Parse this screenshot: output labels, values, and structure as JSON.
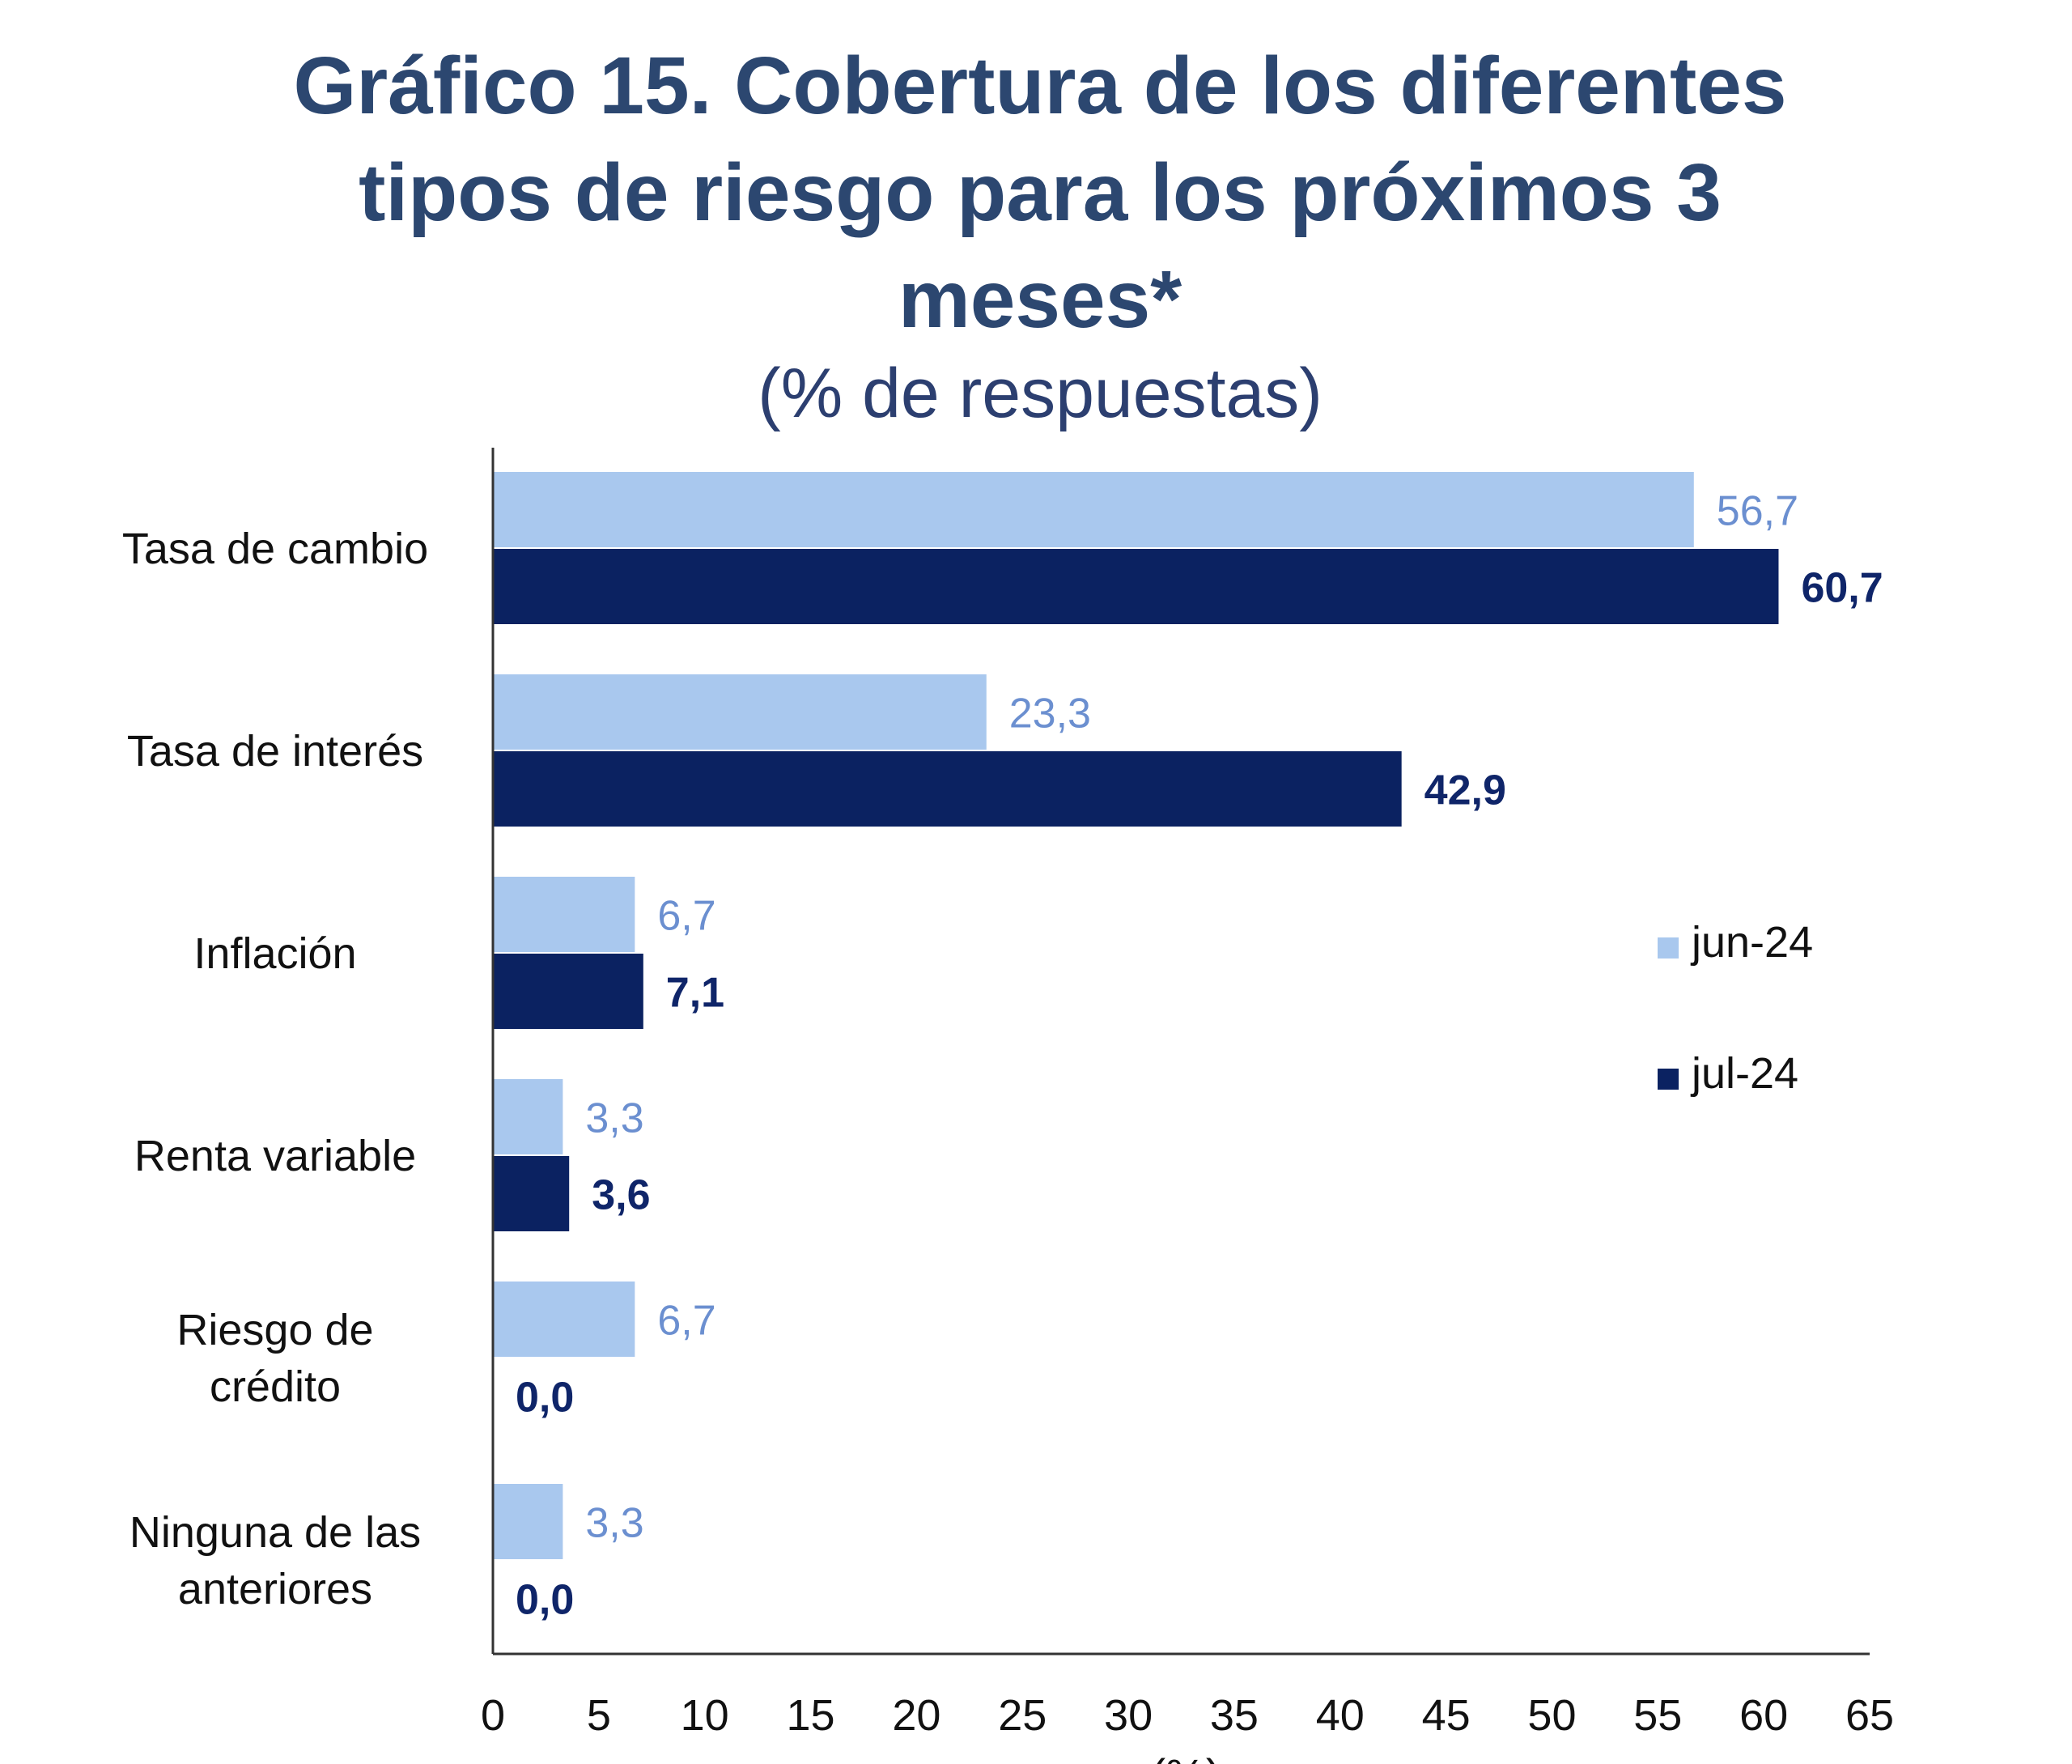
{
  "chart_data": {
    "type": "bar",
    "orientation": "horizontal",
    "title": "Gráfico 15. Cobertura de los diferentes tipos de riesgo para los próximos 3 meses*",
    "title_lines": [
      "Gráfico 15. Cobertura de los diferentes",
      "tipos de riesgo para los próximos 3",
      "meses*"
    ],
    "subtitle": "(% de respuestas)",
    "xlabel": "(%)",
    "categories": [
      [
        "Tasa de cambio"
      ],
      [
        "Tasa de interés"
      ],
      [
        "Inflación"
      ],
      [
        "Renta variable"
      ],
      [
        "Riesgo de",
        "crédito"
      ],
      [
        "Ninguna de las",
        "anteriores"
      ]
    ],
    "series": [
      {
        "name": "jun-24",
        "color": "#a9c8ee",
        "label_color": "#6b8fd0",
        "values": [
          56.7,
          23.3,
          6.7,
          3.3,
          6.7,
          3.3
        ],
        "data_labels": [
          "56,7",
          "23,3",
          "6,7",
          "3,3",
          "6,7",
          "3,3"
        ]
      },
      {
        "name": "jul-24",
        "color": "#0b2261",
        "label_color": "#0f2569",
        "values": [
          60.7,
          42.9,
          7.1,
          3.6,
          0.0,
          0.0
        ],
        "data_labels": [
          "60,7",
          "42,9",
          "7,1",
          "3,6",
          "0,0",
          "0,0"
        ]
      }
    ],
    "xlim": [
      0,
      65
    ],
    "xticks": [
      0,
      5,
      10,
      15,
      20,
      25,
      30,
      35,
      40,
      45,
      50,
      55,
      60,
      65
    ],
    "grid": false,
    "legend_position": "right"
  }
}
